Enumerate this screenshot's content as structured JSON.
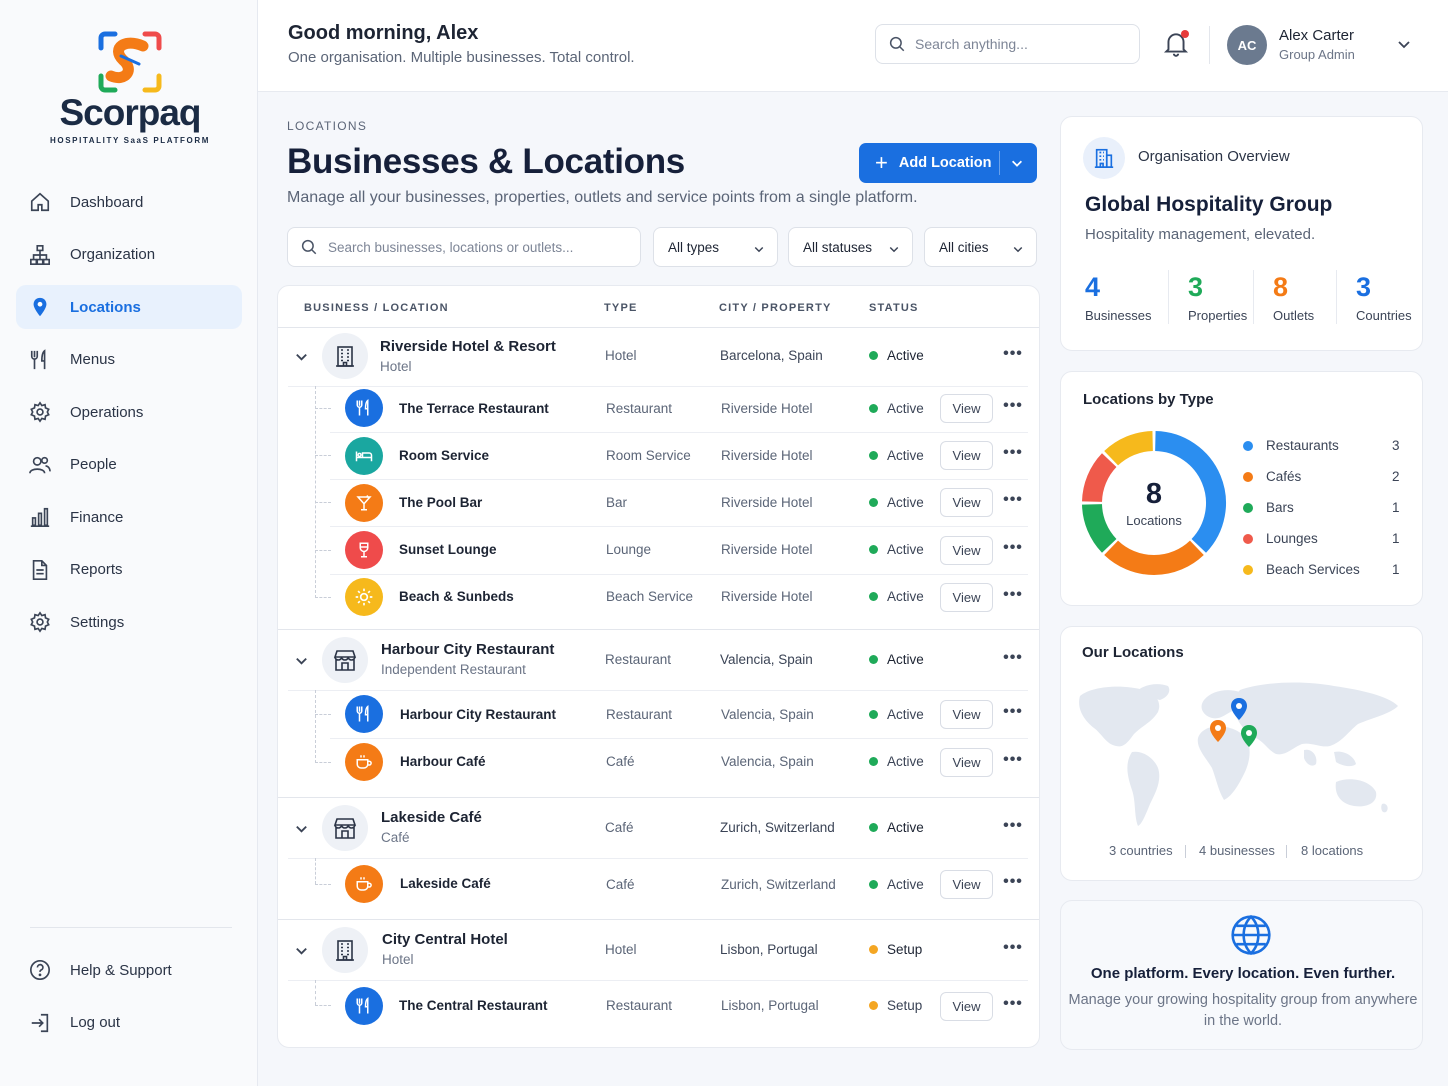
{
  "brand": {
    "name": "Scorpaq",
    "tagline": "HOSPITALITY SaaS PLATFORM"
  },
  "colors": {
    "accent": "#1a6fe0",
    "active": "#1faa59",
    "setup": "#f4a623",
    "orange": "#f47b16",
    "red": "#ef4b4b",
    "teal": "#1aa7a0",
    "yellow": "#f6b91c"
  },
  "nav": {
    "items": [
      {
        "label": "Dashboard",
        "icon": "home-icon"
      },
      {
        "label": "Organization",
        "icon": "hierarchy-icon"
      },
      {
        "label": "Locations",
        "icon": "map-pin-icon",
        "active": true
      },
      {
        "label": "Menus",
        "icon": "fork-knife-icon"
      },
      {
        "label": "Operations",
        "icon": "gear-icon"
      },
      {
        "label": "People",
        "icon": "people-icon"
      },
      {
        "label": "Finance",
        "icon": "bar-chart-icon"
      },
      {
        "label": "Reports",
        "icon": "document-icon"
      },
      {
        "label": "Settings",
        "icon": "settings-icon"
      }
    ],
    "bottom": [
      {
        "label": "Help & Support",
        "icon": "help-icon"
      },
      {
        "label": "Log out",
        "icon": "logout-icon"
      }
    ]
  },
  "header": {
    "greeting": "Good morning, Alex",
    "subtitle": "One organisation. Multiple businesses. Total control.",
    "search_placeholder": "Search anything...",
    "user": {
      "initials": "AC",
      "name": "Alex Carter",
      "role": "Group Admin"
    }
  },
  "page": {
    "breadcrumb": "LOCATIONS",
    "title": "Businesses & Locations",
    "subtitle": "Manage all your businesses, properties, outlets and service points from a single platform.",
    "add_button": "Add Location",
    "filter_placeholder": "Search businesses, locations or outlets...",
    "filters": [
      "All types",
      "All statuses",
      "All cities"
    ]
  },
  "table": {
    "headers": [
      "BUSINESS / LOCATION",
      "TYPE",
      "CITY / PROPERTY",
      "STATUS"
    ],
    "view_label": "View",
    "groups": [
      {
        "name": "Riverside Hotel & Resort",
        "subtitle": "Hotel",
        "type": "Hotel",
        "city": "Barcelona, Spain",
        "status": "Active",
        "icon": "hotel-building-icon",
        "children": [
          {
            "name": "The Terrace Restaurant",
            "type": "Restaurant",
            "city": "Riverside Hotel",
            "status": "Active",
            "icon": "fork-knife-icon",
            "color": "#1a6fe0"
          },
          {
            "name": "Room Service",
            "type": "Room Service",
            "city": "Riverside Hotel",
            "status": "Active",
            "icon": "bed-icon",
            "color": "#1aa7a0"
          },
          {
            "name": "The Pool Bar",
            "type": "Bar",
            "city": "Riverside Hotel",
            "status": "Active",
            "icon": "cocktail-icon",
            "color": "#f47b16"
          },
          {
            "name": "Sunset Lounge",
            "type": "Lounge",
            "city": "Riverside Hotel",
            "status": "Active",
            "icon": "wine-glass-icon",
            "color": "#ef4b4b"
          },
          {
            "name": "Beach & Sunbeds",
            "type": "Beach Service",
            "city": "Riverside Hotel",
            "status": "Active",
            "icon": "sun-icon",
            "color": "#f6b91c"
          }
        ]
      },
      {
        "name": "Harbour City Restaurant",
        "subtitle": "Independent Restaurant",
        "type": "Restaurant",
        "city": "Valencia, Spain",
        "status": "Active",
        "icon": "storefront-icon",
        "children": [
          {
            "name": "Harbour City Restaurant",
            "type": "Restaurant",
            "city": "Valencia, Spain",
            "status": "Active",
            "icon": "fork-knife-icon",
            "color": "#1a6fe0"
          },
          {
            "name": "Harbour Café",
            "type": "Café",
            "city": "Valencia, Spain",
            "status": "Active",
            "icon": "coffee-cup-icon",
            "color": "#f47b16"
          }
        ]
      },
      {
        "name": "Lakeside Café",
        "subtitle": "Café",
        "type": "Café",
        "city": "Zurich, Switzerland",
        "status": "Active",
        "icon": "storefront-icon",
        "children": [
          {
            "name": "Lakeside Café",
            "type": "Café",
            "city": "Zurich, Switzerland",
            "status": "Active",
            "icon": "coffee-cup-icon",
            "color": "#f47b16"
          }
        ]
      },
      {
        "name": "City Central Hotel",
        "subtitle": "Hotel",
        "type": "Hotel",
        "city": "Lisbon, Portugal",
        "status": "Setup",
        "icon": "hotel-building-icon",
        "children": [
          {
            "name": "The Central Restaurant",
            "type": "Restaurant",
            "city": "Lisbon, Portugal",
            "status": "Setup",
            "icon": "fork-knife-icon",
            "color": "#1a6fe0"
          }
        ]
      }
    ]
  },
  "overview": {
    "label": "Organisation Overview",
    "title": "Global Hospitality Group",
    "subtitle": "Hospitality management, elevated.",
    "stats": [
      {
        "value": "4",
        "label": "Businesses",
        "color": "#1a6fe0"
      },
      {
        "value": "3",
        "label": "Properties",
        "color": "#1faa59"
      },
      {
        "value": "8",
        "label": "Outlets",
        "color": "#f47b16"
      },
      {
        "value": "3",
        "label": "Countries",
        "color": "#1a6fe0"
      }
    ]
  },
  "by_type": {
    "title": "Locations by Type",
    "total": "8",
    "total_label": "Locations",
    "items": [
      {
        "label": "Restaurants",
        "value": 3,
        "color": "#2b8ef0"
      },
      {
        "label": "Cafés",
        "value": 2,
        "color": "#f47b16"
      },
      {
        "label": "Bars",
        "value": 1,
        "color": "#1faa59"
      },
      {
        "label": "Lounges",
        "value": 1,
        "color": "#ef5a4b"
      },
      {
        "label": "Beach Services",
        "value": 1,
        "color": "#f6b91c"
      }
    ]
  },
  "map": {
    "title": "Our Locations",
    "stats": [
      "3 countries",
      "4 businesses",
      "8 locations"
    ]
  },
  "promo": {
    "title": "One platform. Every location. Even further.",
    "subtitle": "Manage your growing hospitality group from anywhere in the world."
  }
}
